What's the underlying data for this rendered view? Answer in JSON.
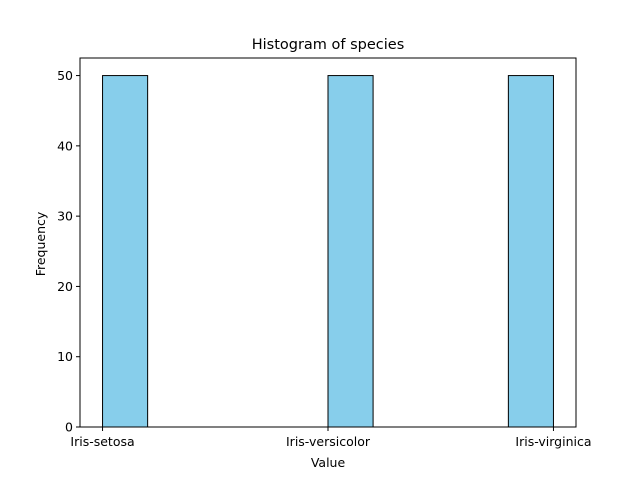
{
  "chart_data": {
    "type": "bar",
    "title": "Histogram of species",
    "xlabel": "Value",
    "ylabel": "Frequency",
    "categories": [
      "Iris-setosa",
      "Iris-versicolor",
      "Iris-virginica"
    ],
    "values": [
      50,
      50,
      50
    ],
    "ylim": [
      0,
      52.5
    ],
    "yticks": [
      0,
      10,
      20,
      30,
      40,
      50
    ],
    "bins": 10,
    "bar_color": "#87CEEB",
    "edge_color": "#000000",
    "grid": false,
    "legend": false
  }
}
